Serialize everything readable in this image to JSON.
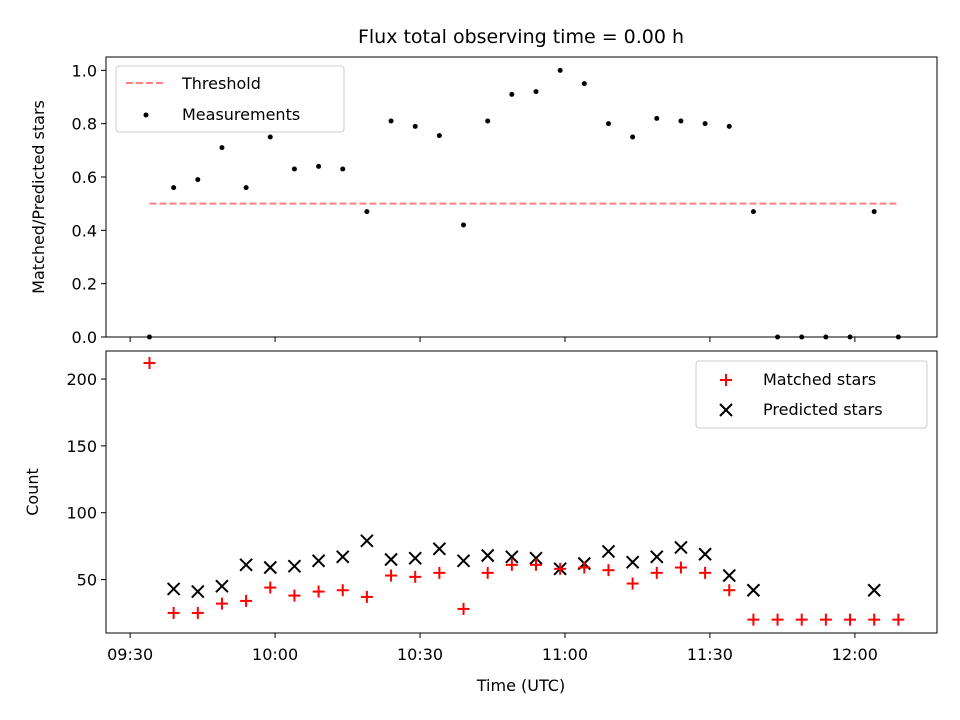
{
  "chart_data": {
    "type": "scatter",
    "title": "Flux total observing time = 0.00 h",
    "xlabel": "Time (UTC)",
    "xlim": [
      "09:25",
      "12:17"
    ],
    "xticks": [
      "09:30",
      "10:00",
      "10:30",
      "11:00",
      "11:30",
      "12:00"
    ],
    "times": [
      "09:34",
      "09:39",
      "09:44",
      "09:49",
      "09:54",
      "09:59",
      "10:04",
      "10:09",
      "10:14",
      "10:19",
      "10:24",
      "10:29",
      "10:34",
      "10:39",
      "10:44",
      "10:49",
      "10:54",
      "10:59",
      "11:04",
      "11:09",
      "11:14",
      "11:19",
      "11:24",
      "11:29",
      "11:34",
      "11:39",
      "11:44",
      "11:49",
      "11:54",
      "11:59",
      "12:04",
      "12:09"
    ],
    "panels": [
      {
        "name": "ratio",
        "ylabel": "Matched/Predicted stars",
        "ylim": [
          0,
          1.05
        ],
        "yticks": [
          "0.0",
          "0.2",
          "0.4",
          "0.6",
          "0.8",
          "1.0"
        ],
        "legend_loc": "upper-left",
        "series": [
          {
            "name": "Threshold",
            "kind": "dashed-line",
            "color": "#ff8080",
            "x": [
              "09:34",
              "12:09"
            ],
            "y": [
              0.5,
              0.5
            ]
          },
          {
            "name": "Measurements",
            "kind": "dot",
            "color": "#000000",
            "y": [
              0.0,
              0.56,
              0.59,
              0.71,
              0.56,
              0.75,
              0.63,
              0.64,
              0.63,
              0.47,
              0.81,
              0.79,
              0.755,
              0.42,
              0.81,
              0.91,
              0.92,
              1.0,
              0.95,
              0.8,
              0.75,
              0.82,
              0.81,
              0.8,
              0.79,
              0.47,
              0.0,
              0.0,
              0.0,
              0.0,
              0.47,
              0.0
            ]
          }
        ]
      },
      {
        "name": "count",
        "ylabel": "Count",
        "ylim": [
          10,
          221
        ],
        "yticks": [
          "50",
          "100",
          "150",
          "200"
        ],
        "legend_loc": "upper-right",
        "series": [
          {
            "name": "Matched stars",
            "kind": "plus",
            "color": "#ff0000",
            "y": [
              212,
              25,
              25,
              32,
              34,
              44,
              38,
              41,
              42,
              37,
              53,
              52,
              55,
              28,
              55,
              61,
              61,
              58,
              59,
              57,
              47,
              55,
              59,
              55,
              42,
              20,
              20,
              20,
              20,
              20,
              20,
              20
            ]
          },
          {
            "name": "Predicted stars",
            "kind": "x",
            "color": "#000000",
            "y": [
              null,
              43,
              41,
              45,
              61,
              59,
              60,
              64,
              67,
              79,
              65,
              66,
              73,
              64,
              68,
              67,
              66,
              58,
              62,
              71,
              63,
              67,
              74,
              69,
              53,
              42,
              null,
              null,
              null,
              null,
              42,
              null
            ]
          }
        ]
      }
    ]
  }
}
